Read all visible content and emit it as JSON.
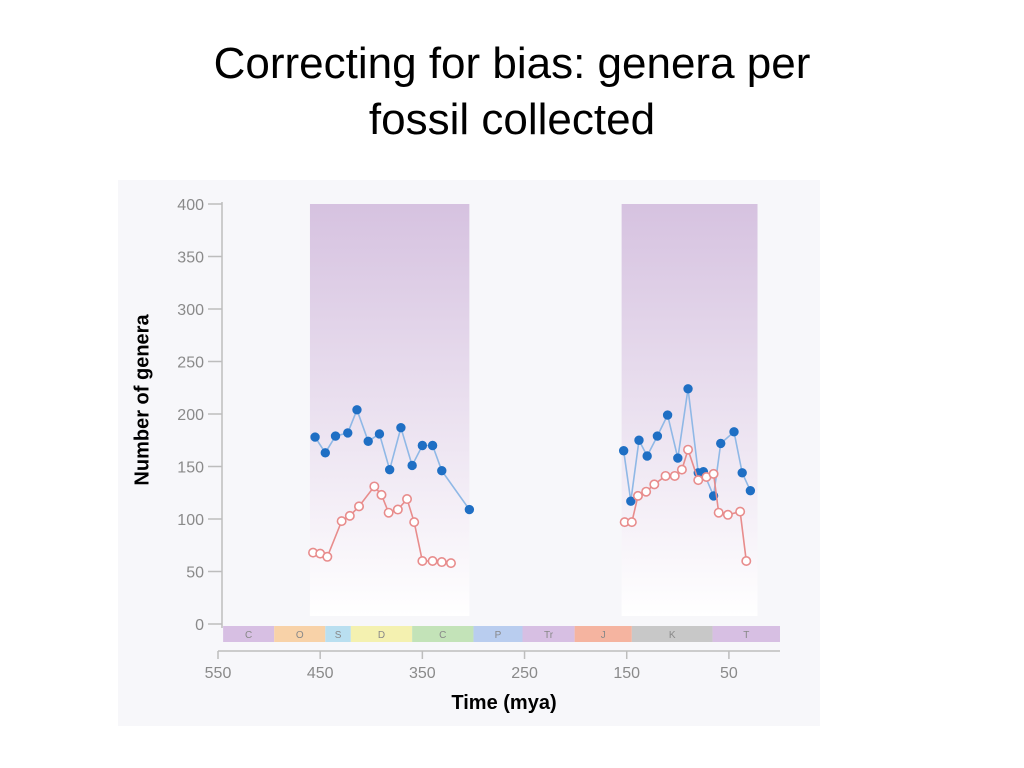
{
  "slide": {
    "title_line1": "Correcting for bias:  genera per",
    "title_line2": "fossil collected"
  },
  "chart_data": {
    "type": "scatter",
    "title": "",
    "xlabel": "Time (mya)",
    "ylabel": "Number of genera",
    "xlim": [
      550,
      0
    ],
    "ylim": [
      0,
      400
    ],
    "x_ticks": [
      550,
      450,
      350,
      250,
      150,
      50
    ],
    "y_ticks": [
      0,
      50,
      100,
      150,
      200,
      250,
      300,
      350,
      400
    ],
    "colors": {
      "blue_series": "#1f6fc4",
      "blue_line": "#8fb8e6",
      "red_series": "#e88c8c",
      "band_top": "#d6c2e0",
      "band_bottom": "#ffffff"
    },
    "shaded_intervals": [
      {
        "from": 460,
        "to": 304
      },
      {
        "from": 155,
        "to": 22
      }
    ],
    "periods": [
      {
        "label": "C",
        "from": 545,
        "to": 495,
        "color": "#d7bfe3"
      },
      {
        "label": "O",
        "from": 495,
        "to": 445,
        "color": "#f8d2a8"
      },
      {
        "label": "S",
        "from": 445,
        "to": 420,
        "color": "#b9dff0"
      },
      {
        "label": "D",
        "from": 420,
        "to": 360,
        "color": "#f4f1b0"
      },
      {
        "label": "C",
        "from": 360,
        "to": 300,
        "color": "#c3e3b8"
      },
      {
        "label": "P",
        "from": 300,
        "to": 252,
        "color": "#b9cdef"
      },
      {
        "label": "Tr",
        "from": 252,
        "to": 201,
        "color": "#d7bfe3"
      },
      {
        "label": "J",
        "from": 201,
        "to": 145,
        "color": "#f5b4a0"
      },
      {
        "label": "K",
        "from": 145,
        "to": 66,
        "color": "#c8c8c8"
      },
      {
        "label": "T",
        "from": 66,
        "to": 0,
        "color": "#d7bfe3"
      }
    ],
    "series": [
      {
        "marker": "filled-circle",
        "segments": [
          {
            "x": [
              455,
              445,
              435,
              423,
              414,
              403,
              392,
              382,
              371,
              360,
              350,
              340,
              331,
              304
            ],
            "y": [
              178,
              163,
              179,
              182,
              204,
              174,
              181,
              147,
              187,
              151,
              170,
              170,
              146,
              109
            ]
          },
          {
            "x": [
              153,
              146,
              138,
              130,
              120,
              110,
              100,
              90,
              80,
              75,
              65,
              58,
              45,
              37,
              29
            ],
            "y": [
              165,
              117,
              175,
              160,
              179,
              199,
              158,
              224,
              144,
              145,
              122,
              172,
              183,
              144,
              127
            ]
          }
        ]
      },
      {
        "marker": "open-circle",
        "segments": [
          {
            "x": [
              457,
              450,
              443,
              429,
              421,
              412,
              397,
              390,
              383,
              374,
              365,
              358,
              350,
              340,
              331,
              322
            ],
            "y": [
              68,
              67,
              64,
              98,
              103,
              112,
              131,
              123,
              106,
              109,
              119,
              97,
              60,
              60,
              59,
              58
            ]
          },
          {
            "x": [
              152,
              145,
              139,
              131,
              123,
              112,
              103,
              96,
              90,
              80,
              72,
              65,
              60,
              51,
              39,
              33
            ],
            "y": [
              97,
              97,
              122,
              126,
              133,
              141,
              141,
              147,
              166,
              137,
              140,
              143,
              106,
              104,
              107,
              60
            ]
          }
        ]
      }
    ]
  }
}
